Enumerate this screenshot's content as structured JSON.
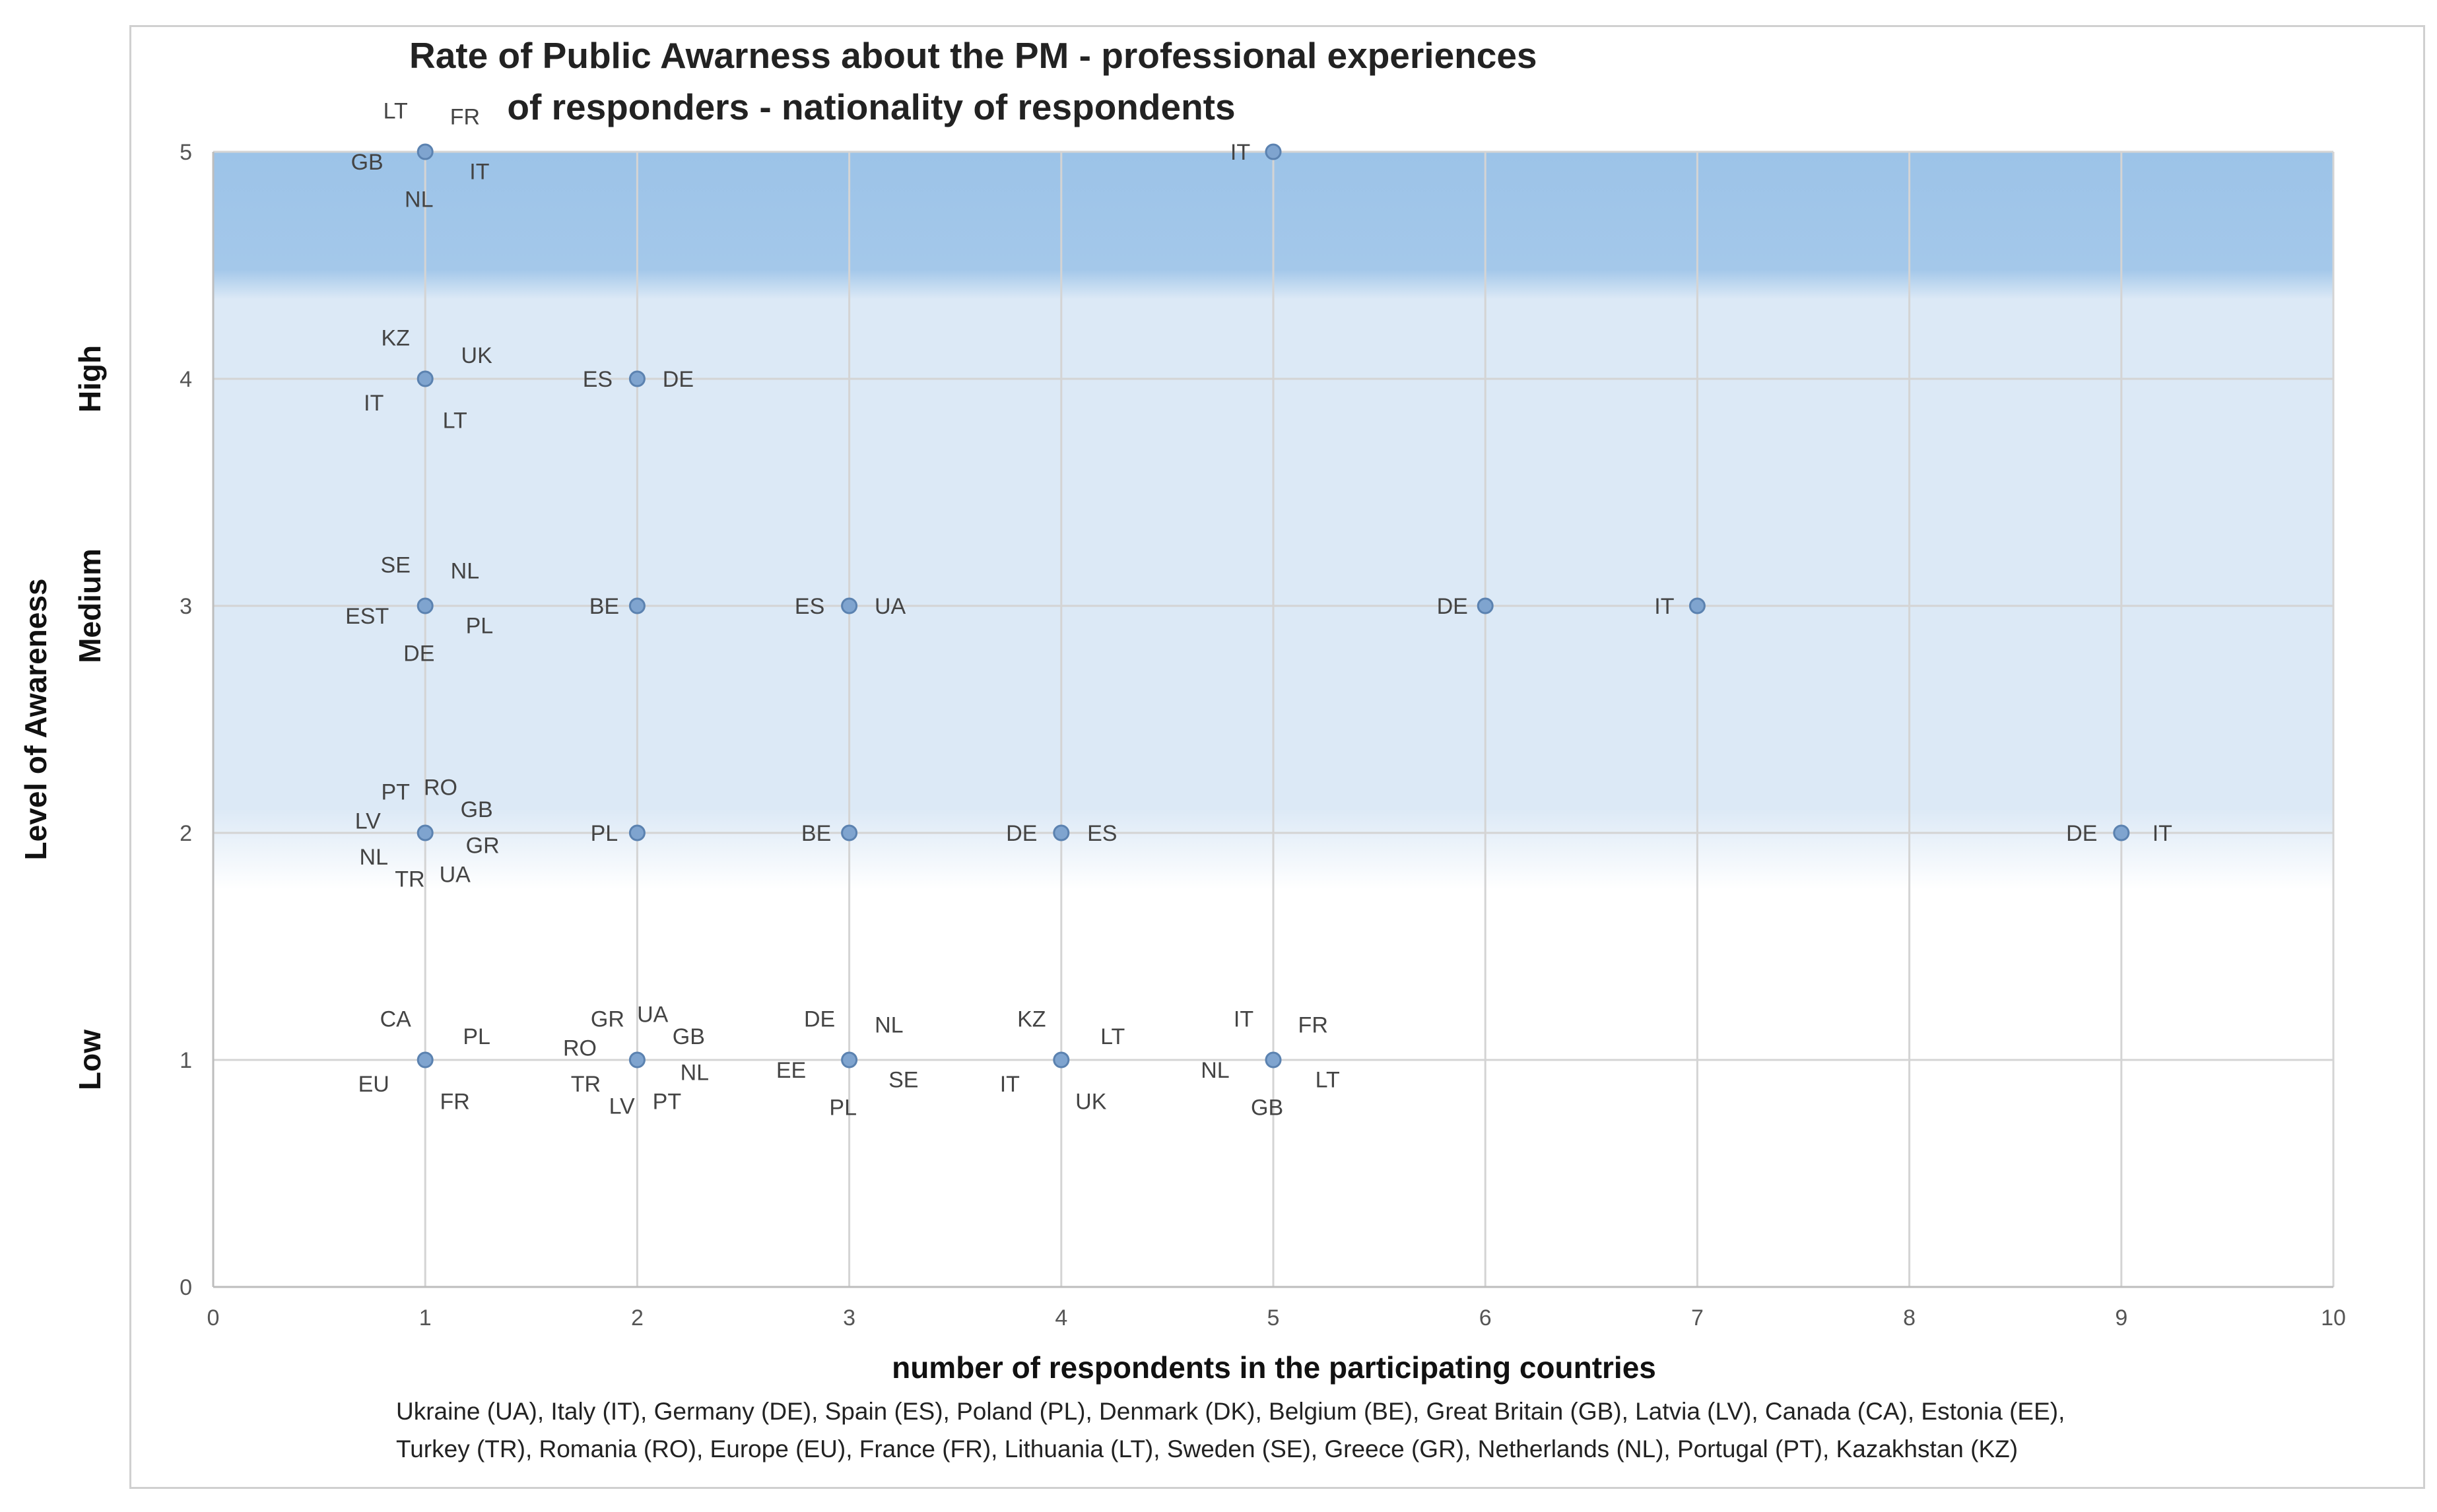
{
  "chart_data": {
    "type": "scatter",
    "title_line_1": "Rate of Public Awarness about the PM - professional experiences",
    "title_line_2": "of responders - nationality of respondents",
    "xlabel": "number of respondents in the participating countries",
    "ylabel": "Level of Awareness",
    "xlim": [
      0,
      10
    ],
    "ylim": [
      0,
      5
    ],
    "x_ticks": [
      0,
      1,
      2,
      3,
      4,
      5,
      6,
      7,
      8,
      9,
      10
    ],
    "y_ticks": [
      0,
      1,
      2,
      3,
      4,
      5
    ],
    "grid": true,
    "band_labels": [
      {
        "text": "Low",
        "y": 1
      },
      {
        "text": "Medium",
        "y": 3
      },
      {
        "text": "High",
        "y": 4
      }
    ],
    "footnote_line_1": "Ukraine (UA),  Italy (IT), Germany (DE),  Spain (ES), Poland (PL), Denmark (DK), Belgium (BE), Great Britain (GB), Latvia (LV),  Canada (CA), Estonia (EE),",
    "footnote_line_2": "Turkey (TR), Romania (RO), Europe (EU),  France (FR), Lithuania (LT), Sweden  (SE), Greece  (GR), Netherlands (NL), Portugal (PT),  Kazakhstan (KZ)",
    "points": [
      {
        "x": 1,
        "y": 5,
        "labels": [
          "LT",
          "FR",
          "IT",
          "NL",
          "GB"
        ]
      },
      {
        "x": 5,
        "y": 5,
        "labels": [
          "IT"
        ]
      },
      {
        "x": 1,
        "y": 4,
        "labels": [
          "KZ",
          "UK",
          "LT",
          "IT"
        ]
      },
      {
        "x": 2,
        "y": 4,
        "labels": [
          "ES",
          "DE"
        ]
      },
      {
        "x": 1,
        "y": 3,
        "labels": [
          "SE",
          "NL",
          "PL",
          "DE",
          "EST"
        ]
      },
      {
        "x": 2,
        "y": 3,
        "labels": [
          "BE"
        ]
      },
      {
        "x": 3,
        "y": 3,
        "labels": [
          "ES",
          "UA"
        ]
      },
      {
        "x": 6,
        "y": 3,
        "labels": [
          "DE"
        ]
      },
      {
        "x": 7,
        "y": 3,
        "labels": [
          "IT"
        ]
      },
      {
        "x": 1,
        "y": 2,
        "labels": [
          "PT",
          "RO",
          "GB",
          "GR",
          "UA",
          "TR",
          "NL",
          "LV"
        ]
      },
      {
        "x": 2,
        "y": 2,
        "labels": [
          "PL"
        ]
      },
      {
        "x": 3,
        "y": 2,
        "labels": [
          "BE"
        ]
      },
      {
        "x": 4,
        "y": 2,
        "labels": [
          "DE",
          "ES"
        ]
      },
      {
        "x": 9,
        "y": 2,
        "labels": [
          "DE",
          "IT"
        ]
      },
      {
        "x": 1,
        "y": 1,
        "labels": [
          "CA",
          "PL",
          "FR",
          "EU"
        ]
      },
      {
        "x": 2,
        "y": 1,
        "labels": [
          "GR",
          "UA",
          "GB",
          "NL",
          "PT",
          "LV",
          "TR",
          "RO"
        ]
      },
      {
        "x": 3,
        "y": 1,
        "labels": [
          "DE",
          "NL",
          "SE",
          "PL",
          "EE"
        ]
      },
      {
        "x": 4,
        "y": 1,
        "labels": [
          "KZ",
          "LT",
          "UK",
          "IT"
        ]
      },
      {
        "x": 5,
        "y": 1,
        "labels": [
          "IT",
          "FR",
          "LT",
          "GB",
          "NL"
        ]
      }
    ]
  }
}
